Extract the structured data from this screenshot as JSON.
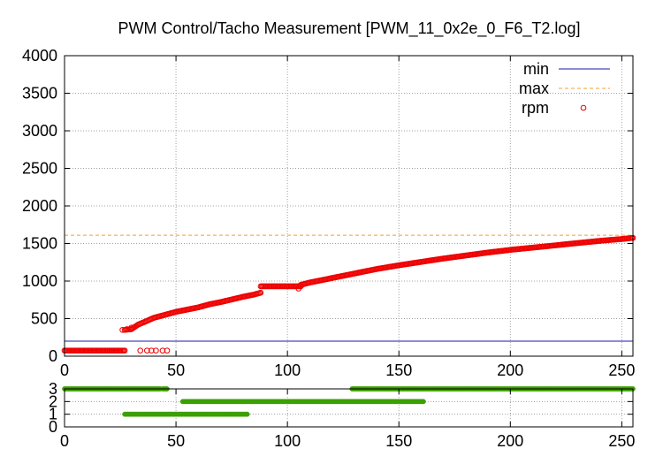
{
  "chart_data": [
    {
      "type": "scatter",
      "title": "PWM Control/Tacho Measurement [PWM_11_0x2e_0_F6_T2.log]",
      "xlim": [
        0,
        255
      ],
      "ylim": [
        0,
        4000
      ],
      "x_ticks": [
        0,
        50,
        100,
        150,
        200,
        250
      ],
      "y_ticks": [
        0,
        500,
        1000,
        1500,
        2000,
        2500,
        3000,
        3500,
        4000
      ],
      "grid": true,
      "legend": "top-right",
      "series": [
        {
          "name": "min",
          "style": "line",
          "color": "#1a1aaa",
          "value": 200
        },
        {
          "name": "max",
          "style": "dashed",
          "color": "#f0a030",
          "value": 1610
        },
        {
          "name": "rpm",
          "style": "circles",
          "color": "#ee0000",
          "segments": [
            {
              "x_from": 0,
              "x_to": 27,
              "points": [
                [
                  0,
                  75
                ],
                [
                  27,
                  75
                ]
              ]
            },
            {
              "x_from": 27,
              "x_to": 88,
              "points": [
                [
                  27,
                  350
                ],
                [
                  30,
                  360
                ],
                [
                  33,
                  420
                ],
                [
                  37,
                  470
                ],
                [
                  40,
                  510
                ],
                [
                  45,
                  550
                ],
                [
                  50,
                  590
                ],
                [
                  55,
                  620
                ],
                [
                  60,
                  650
                ],
                [
                  65,
                  690
                ],
                [
                  70,
                  720
                ],
                [
                  75,
                  755
                ],
                [
                  80,
                  790
                ],
                [
                  85,
                  820
                ],
                [
                  88,
                  845
                ]
              ]
            },
            {
              "x_from": 88,
              "x_to": 106,
              "points": [
                [
                  88,
                  930
                ],
                [
                  106,
                  930
                ]
              ]
            },
            {
              "x_from": 106,
              "x_to": 255,
              "points": [
                [
                  106,
                  950
                ],
                [
                  110,
                  980
                ],
                [
                  120,
                  1040
                ],
                [
                  130,
                  1100
                ],
                [
                  140,
                  1160
                ],
                [
                  150,
                  1210
                ],
                [
                  160,
                  1255
                ],
                [
                  170,
                  1300
                ],
                [
                  180,
                  1340
                ],
                [
                  190,
                  1380
                ],
                [
                  200,
                  1415
                ],
                [
                  210,
                  1445
                ],
                [
                  220,
                  1475
                ],
                [
                  230,
                  1505
                ],
                [
                  240,
                  1535
                ],
                [
                  250,
                  1560
                ],
                [
                  255,
                  1575
                ]
              ]
            }
          ],
          "outliers": [
            [
              26,
              350
            ],
            [
              28,
              360
            ],
            [
              30,
              380
            ],
            [
              34,
              75
            ],
            [
              37,
              75
            ],
            [
              39,
              75
            ],
            [
              41,
              75
            ],
            [
              44,
              75
            ],
            [
              46,
              75
            ],
            [
              105,
              900
            ]
          ]
        }
      ]
    },
    {
      "type": "scatter",
      "xlim": [
        0,
        255
      ],
      "ylim": [
        0,
        3
      ],
      "x_ticks": [
        0,
        50,
        100,
        150,
        200,
        250
      ],
      "y_ticks": [
        0,
        1,
        2,
        3
      ],
      "grid": true,
      "series": [
        {
          "color": "#3ca000",
          "segments": [
            {
              "y": 3,
              "x_from": 0,
              "x_to": 43
            },
            {
              "y": 3,
              "x_from": 44,
              "x_to": 46
            },
            {
              "y": 3,
              "x_from": 129,
              "x_to": 255
            },
            {
              "y": 2,
              "x_from": 53,
              "x_to": 161
            },
            {
              "y": 1,
              "x_from": 27,
              "x_to": 82
            }
          ]
        }
      ]
    }
  ]
}
